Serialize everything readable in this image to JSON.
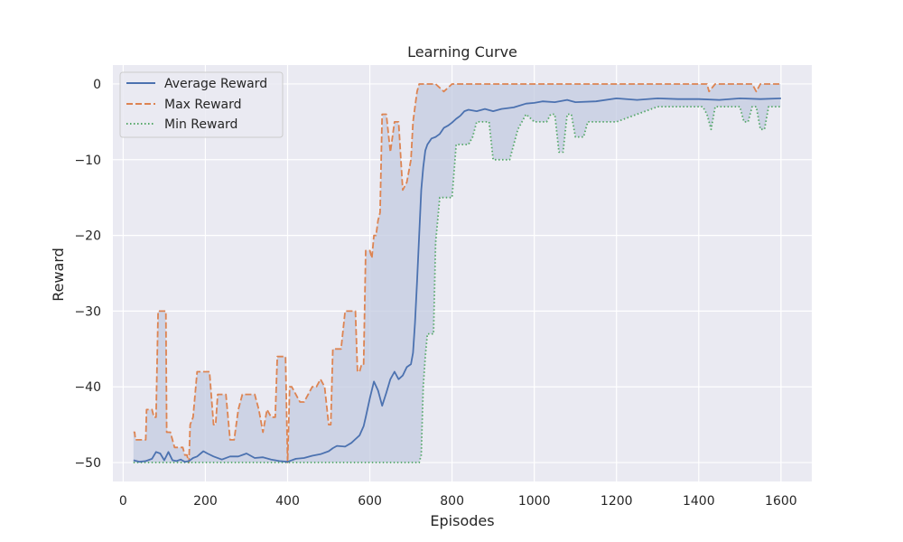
{
  "chart_data": {
    "type": "line",
    "title": "Learning Curve",
    "xlabel": "Episodes",
    "ylabel": "Reward",
    "xlim": [
      -25,
      1675
    ],
    "ylim": [
      -52.5,
      2.5
    ],
    "xticks": [
      0,
      200,
      400,
      600,
      800,
      1000,
      1200,
      1400,
      1600
    ],
    "yticks": [
      0,
      -10,
      -20,
      -30,
      -40,
      -50
    ],
    "grid": true,
    "legend_position": "upper-left",
    "fill_between": {
      "lower": "Min Reward",
      "upper": "Max Reward",
      "color": "#c3cbe0"
    },
    "colors": {
      "background": "#eaeaf2",
      "grid": "#ffffff"
    },
    "series": [
      {
        "name": "Average Reward",
        "color": "#4c72b0",
        "style": "solid",
        "x": [
          25,
          40,
          55,
          70,
          80,
          90,
          100,
          110,
          120,
          130,
          140,
          150,
          160,
          170,
          180,
          195,
          205,
          220,
          240,
          260,
          280,
          300,
          320,
          340,
          360,
          380,
          400,
          420,
          440,
          460,
          480,
          500,
          510,
          520,
          540,
          555,
          565,
          575,
          585,
          590,
          600,
          610,
          620,
          630,
          640,
          650,
          660,
          670,
          680,
          690,
          700,
          705,
          710,
          715,
          720,
          725,
          730,
          735,
          740,
          750,
          760,
          770,
          780,
          790,
          800,
          810,
          820,
          830,
          840,
          860,
          880,
          900,
          920,
          950,
          980,
          1000,
          1020,
          1050,
          1080,
          1100,
          1150,
          1200,
          1250,
          1300,
          1350,
          1400,
          1450,
          1500,
          1550,
          1600
        ],
        "y": [
          -49.7,
          -49.9,
          -49.8,
          -49.5,
          -48.6,
          -48.8,
          -49.7,
          -48.6,
          -49.7,
          -49.8,
          -49.6,
          -49.9,
          -49.8,
          -49.4,
          -49.2,
          -48.5,
          -48.8,
          -49.2,
          -49.6,
          -49.2,
          -49.2,
          -48.8,
          -49.4,
          -49.3,
          -49.6,
          -49.8,
          -49.9,
          -49.5,
          -49.4,
          -49.1,
          -48.9,
          -48.5,
          -48.1,
          -47.8,
          -47.9,
          -47.4,
          -46.9,
          -46.4,
          -45.2,
          -44.0,
          -41.5,
          -39.3,
          -40.5,
          -42.5,
          -40.8,
          -39.0,
          -38.0,
          -39.0,
          -38.5,
          -37.4,
          -37.0,
          -35.5,
          -31.5,
          -26.0,
          -20.0,
          -14.0,
          -11.0,
          -8.8,
          -8.0,
          -7.2,
          -7.0,
          -6.6,
          -5.8,
          -5.5,
          -5.1,
          -4.6,
          -4.2,
          -3.6,
          -3.4,
          -3.6,
          -3.3,
          -3.6,
          -3.3,
          -3.1,
          -2.6,
          -2.5,
          -2.3,
          -2.4,
          -2.1,
          -2.4,
          -2.3,
          -1.9,
          -2.1,
          -1.9,
          -2.0,
          -2.0,
          -2.1,
          -1.9,
          -2.0,
          -1.9
        ]
      },
      {
        "name": "Max Reward",
        "color": "#dd8452",
        "style": "dashed",
        "x": [
          25,
          28,
          30,
          45,
          55,
          57,
          70,
          75,
          80,
          85,
          90,
          100,
          104,
          106,
          115,
          125,
          135,
          145,
          150,
          155,
          160,
          163,
          170,
          180,
          190,
          195,
          200,
          205,
          210,
          220,
          225,
          230,
          240,
          250,
          260,
          270,
          280,
          290,
          300,
          310,
          320,
          330,
          340,
          350,
          360,
          370,
          375,
          380,
          385,
          390,
          395,
          400,
          405,
          410,
          420,
          430,
          440,
          450,
          460,
          470,
          480,
          490,
          500,
          505,
          510,
          520,
          530,
          540,
          550,
          560,
          565,
          570,
          575,
          580,
          585,
          590,
          600,
          605,
          610,
          615,
          620,
          625,
          630,
          640,
          650,
          660,
          670,
          680,
          690,
          700,
          705,
          710,
          715,
          720,
          725,
          730,
          740,
          760,
          780,
          800,
          830,
          860,
          900,
          950,
          1000,
          1050,
          1100,
          1150,
          1200,
          1250,
          1300,
          1350,
          1400,
          1410,
          1420,
          1425,
          1440,
          1460,
          1480,
          1500,
          1520,
          1530,
          1540,
          1550,
          1600
        ],
        "y": [
          -46,
          -46,
          -47,
          -47,
          -47,
          -43,
          -43,
          -44,
          -44,
          -30,
          -30,
          -30,
          -30,
          -46,
          -46,
          -48,
          -48,
          -48,
          -49,
          -49,
          -50,
          -45,
          -44,
          -38,
          -38,
          -38,
          -38,
          -38,
          -38,
          -45,
          -45,
          -41,
          -41,
          -41,
          -47,
          -47,
          -43,
          -41,
          -41,
          -41,
          -41,
          -43,
          -46,
          -43,
          -44,
          -44,
          -36,
          -36,
          -36,
          -36,
          -36,
          -50,
          -40,
          -40,
          -41,
          -42,
          -42,
          -41,
          -40,
          -40,
          -39,
          -40,
          -45,
          -45,
          -35,
          -35,
          -35,
          -30,
          -30,
          -30,
          -30,
          -38,
          -38,
          -37,
          -37,
          -22,
          -22,
          -23,
          -20,
          -20,
          -18,
          -17,
          -4,
          -4,
          -9,
          -5,
          -5,
          -14,
          -13,
          -10,
          -5,
          -3,
          -1,
          0,
          0,
          0,
          0,
          0,
          -1,
          0,
          0,
          0,
          0,
          0,
          0,
          0,
          0,
          0,
          0,
          0,
          0,
          0,
          0,
          0,
          0,
          -1,
          0,
          0,
          0,
          0,
          0,
          0,
          -1,
          0,
          0
        ]
      },
      {
        "name": "Min Reward",
        "color": "#55a868",
        "style": "dotted",
        "x": [
          25,
          400,
          720,
          725,
          730,
          735,
          740,
          750,
          755,
          760,
          770,
          780,
          790,
          800,
          810,
          815,
          825,
          840,
          850,
          860,
          870,
          880,
          890,
          900,
          920,
          940,
          960,
          980,
          1000,
          1020,
          1030,
          1040,
          1050,
          1060,
          1070,
          1080,
          1090,
          1100,
          1110,
          1120,
          1130,
          1150,
          1200,
          1250,
          1300,
          1350,
          1400,
          1410,
          1420,
          1430,
          1440,
          1460,
          1480,
          1500,
          1510,
          1520,
          1530,
          1540,
          1550,
          1560,
          1570,
          1580,
          1600
        ],
        "y": [
          -50,
          -50,
          -50,
          -49,
          -40,
          -36,
          -33,
          -33,
          -33,
          -21,
          -15,
          -15,
          -15,
          -15,
          -8,
          -8,
          -8,
          -8,
          -7,
          -5,
          -5,
          -5,
          -5,
          -10,
          -10,
          -10,
          -6,
          -4,
          -5,
          -5,
          -5,
          -4,
          -4,
          -9,
          -9,
          -4,
          -4,
          -7,
          -7,
          -7,
          -5,
          -5,
          -5,
          -4,
          -3,
          -3,
          -3,
          -3,
          -4,
          -6,
          -3,
          -3,
          -3,
          -3,
          -5,
          -5,
          -3,
          -3,
          -6,
          -6,
          -3,
          -3,
          -3
        ]
      }
    ]
  }
}
